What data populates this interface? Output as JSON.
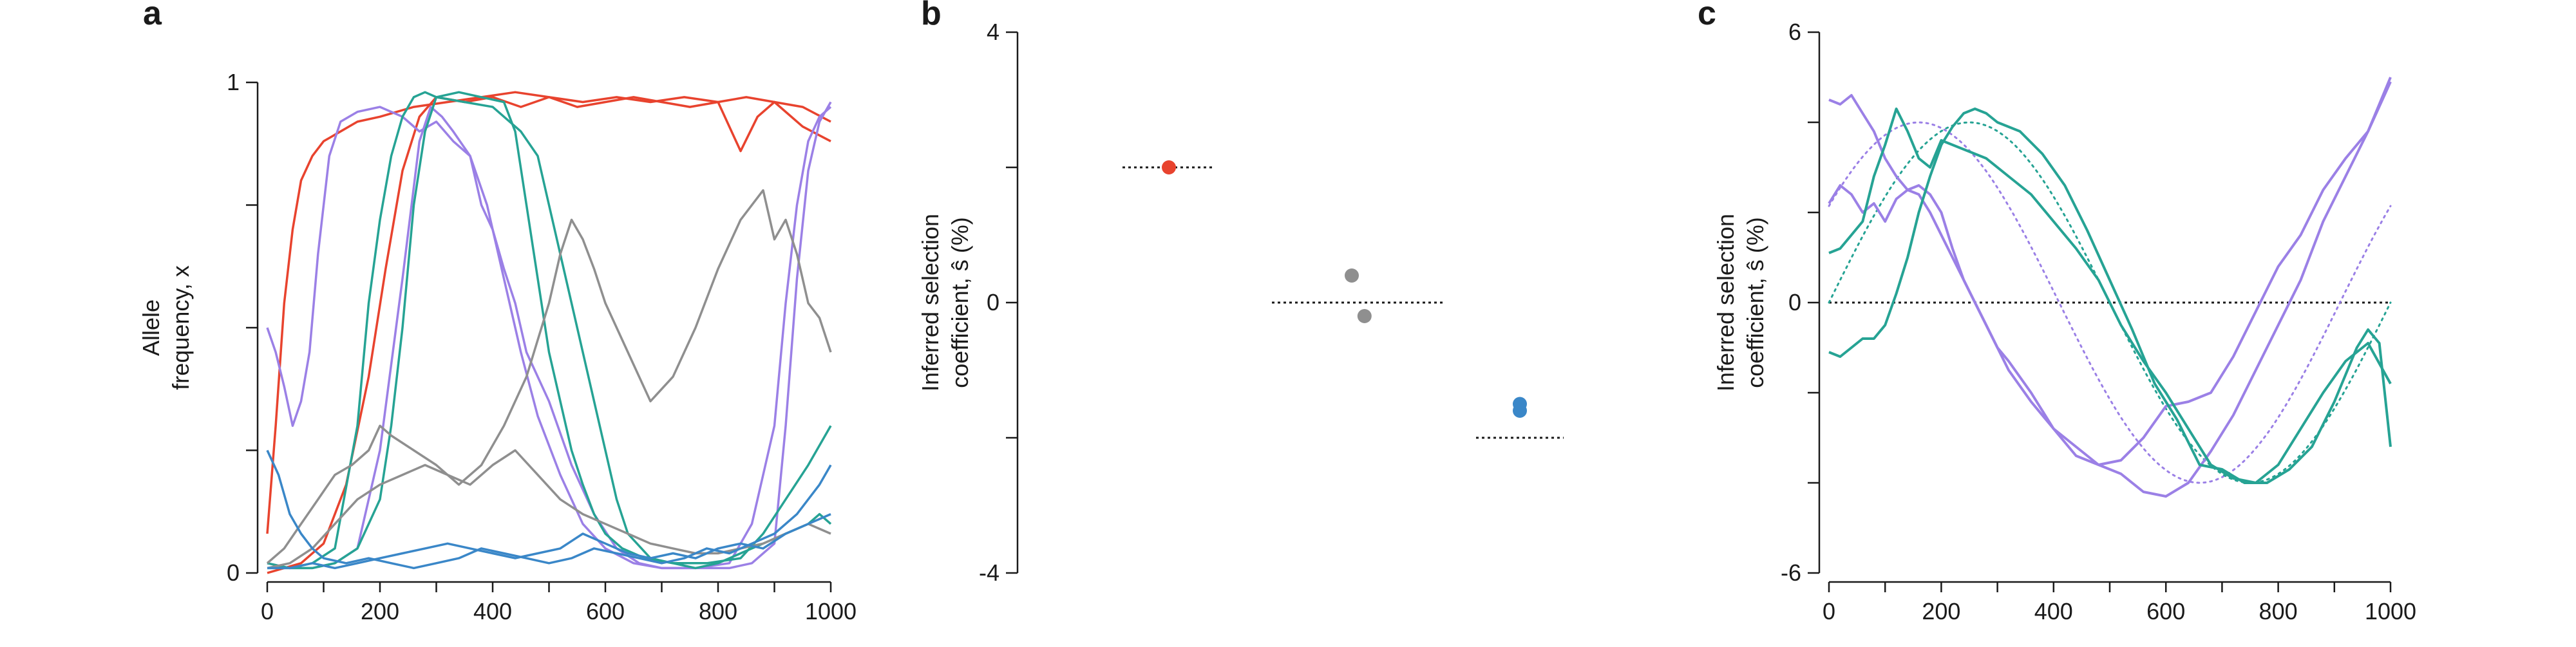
{
  "colors": {
    "red": "#e8432e",
    "gray": "#8f8f8f",
    "blue": "#3a87c8",
    "teal": "#26a394",
    "purple": "#9b80e6",
    "black": "#1a1a1a"
  },
  "chart_data": [
    {
      "type": "line",
      "panel": "a",
      "xlabel": "",
      "ylabel_lines": [
        "Allele",
        "frequency, x"
      ],
      "xlim": [
        0,
        1000
      ],
      "ylim": [
        0,
        1
      ],
      "xticks": [
        "0",
        "200",
        "400",
        "600",
        "800",
        "1000"
      ],
      "yticks": [
        "0",
        "1"
      ],
      "series": [
        {
          "color": "red",
          "x": [
            0,
            15,
            30,
            45,
            60,
            80,
            100,
            130,
            160,
            200,
            260,
            320,
            380,
            440,
            500,
            560,
            620,
            680,
            740,
            800,
            840,
            870,
            900,
            950,
            1000
          ],
          "y": [
            0.08,
            0.3,
            0.55,
            0.7,
            0.8,
            0.85,
            0.88,
            0.9,
            0.92,
            0.93,
            0.95,
            0.96,
            0.97,
            0.98,
            0.97,
            0.96,
            0.97,
            0.96,
            0.97,
            0.96,
            0.86,
            0.93,
            0.96,
            0.91,
            0.88
          ]
        },
        {
          "color": "red",
          "x": [
            0,
            60,
            100,
            140,
            180,
            210,
            240,
            270,
            300,
            350,
            400,
            450,
            500,
            550,
            600,
            650,
            700,
            750,
            800,
            850,
            900,
            950,
            1000
          ],
          "y": [
            0,
            0.02,
            0.06,
            0.18,
            0.4,
            0.62,
            0.82,
            0.93,
            0.97,
            0.96,
            0.97,
            0.95,
            0.97,
            0.95,
            0.96,
            0.97,
            0.96,
            0.95,
            0.96,
            0.97,
            0.96,
            0.95,
            0.92
          ]
        },
        {
          "color": "purple",
          "x": [
            0,
            15,
            30,
            45,
            60,
            75,
            90,
            110,
            130,
            160,
            200,
            240,
            270,
            300,
            330,
            360,
            380,
            400,
            420,
            440,
            460,
            500,
            540,
            580,
            620,
            660,
            700,
            740,
            780,
            820,
            860,
            900,
            920,
            940,
            960,
            980,
            1000
          ],
          "y": [
            0.5,
            0.45,
            0.38,
            0.3,
            0.35,
            0.45,
            0.65,
            0.85,
            0.92,
            0.94,
            0.95,
            0.93,
            0.9,
            0.92,
            0.88,
            0.85,
            0.75,
            0.7,
            0.62,
            0.55,
            0.45,
            0.35,
            0.22,
            0.12,
            0.05,
            0.02,
            0.01,
            0.01,
            0.01,
            0.01,
            0.02,
            0.06,
            0.3,
            0.6,
            0.82,
            0.92,
            0.96
          ]
        },
        {
          "color": "purple",
          "x": [
            0,
            40,
            80,
            120,
            160,
            200,
            240,
            270,
            290,
            310,
            330,
            360,
            390,
            420,
            450,
            480,
            520,
            560,
            600,
            650,
            700,
            760,
            820,
            860,
            900,
            920,
            940,
            960,
            980,
            1000
          ],
          "y": [
            0.02,
            0.01,
            0.01,
            0.02,
            0.05,
            0.25,
            0.6,
            0.88,
            0.95,
            0.93,
            0.9,
            0.85,
            0.75,
            0.6,
            0.45,
            0.32,
            0.2,
            0.1,
            0.05,
            0.02,
            0.01,
            0.01,
            0.02,
            0.1,
            0.3,
            0.55,
            0.75,
            0.88,
            0.93,
            0.95
          ]
        },
        {
          "color": "teal",
          "x": [
            0,
            40,
            80,
            120,
            160,
            180,
            200,
            220,
            240,
            260,
            280,
            300,
            350,
            400,
            450,
            480,
            500,
            520,
            540,
            560,
            580,
            600,
            620,
            640,
            680,
            720,
            760,
            800,
            840,
            880,
            920,
            960,
            980,
            1000
          ],
          "y": [
            0.01,
            0.01,
            0.02,
            0.05,
            0.3,
            0.55,
            0.72,
            0.85,
            0.93,
            0.97,
            0.98,
            0.97,
            0.96,
            0.95,
            0.9,
            0.85,
            0.75,
            0.65,
            0.55,
            0.45,
            0.35,
            0.25,
            0.15,
            0.08,
            0.03,
            0.02,
            0.01,
            0.02,
            0.04,
            0.06,
            0.08,
            0.1,
            0.12,
            0.1
          ]
        },
        {
          "color": "teal",
          "x": [
            0,
            40,
            80,
            120,
            160,
            200,
            220,
            240,
            260,
            280,
            300,
            340,
            380,
            420,
            440,
            460,
            480,
            500,
            520,
            540,
            560,
            580,
            600,
            630,
            670,
            720,
            780,
            840,
            880,
            920,
            960,
            1000
          ],
          "y": [
            0.02,
            0.01,
            0.01,
            0.02,
            0.05,
            0.15,
            0.3,
            0.5,
            0.75,
            0.9,
            0.97,
            0.98,
            0.97,
            0.96,
            0.9,
            0.75,
            0.6,
            0.45,
            0.35,
            0.25,
            0.18,
            0.12,
            0.08,
            0.05,
            0.03,
            0.02,
            0.02,
            0.03,
            0.08,
            0.15,
            0.22,
            0.3
          ]
        },
        {
          "color": "gray",
          "x": [
            0,
            30,
            60,
            90,
            120,
            150,
            180,
            200,
            220,
            260,
            300,
            340,
            380,
            420,
            460,
            500,
            520,
            540,
            560,
            580,
            600,
            640,
            680,
            720,
            760,
            800,
            840,
            880,
            900,
            920,
            940,
            960,
            980,
            1000
          ],
          "y": [
            0.02,
            0.05,
            0.1,
            0.15,
            0.2,
            0.22,
            0.25,
            0.3,
            0.28,
            0.25,
            0.22,
            0.18,
            0.22,
            0.3,
            0.4,
            0.55,
            0.65,
            0.72,
            0.68,
            0.62,
            0.55,
            0.45,
            0.35,
            0.4,
            0.5,
            0.62,
            0.72,
            0.78,
            0.68,
            0.72,
            0.65,
            0.55,
            0.52,
            0.45
          ]
        },
        {
          "color": "gray",
          "x": [
            0,
            40,
            80,
            120,
            160,
            200,
            240,
            280,
            320,
            360,
            400,
            440,
            480,
            520,
            560,
            600,
            640,
            680,
            720,
            760,
            800,
            840,
            880,
            920,
            960,
            1000
          ],
          "y": [
            0.01,
            0.02,
            0.05,
            0.1,
            0.15,
            0.18,
            0.2,
            0.22,
            0.2,
            0.18,
            0.22,
            0.25,
            0.2,
            0.15,
            0.12,
            0.1,
            0.08,
            0.06,
            0.05,
            0.04,
            0.04,
            0.05,
            0.06,
            0.08,
            0.1,
            0.08
          ]
        },
        {
          "color": "blue",
          "x": [
            0,
            20,
            40,
            60,
            80,
            100,
            140,
            180,
            220,
            260,
            300,
            340,
            380,
            420,
            460,
            500,
            540,
            580,
            620,
            660,
            700,
            740,
            780,
            820,
            860,
            900,
            940,
            980,
            1000
          ],
          "y": [
            0.25,
            0.2,
            0.12,
            0.08,
            0.05,
            0.03,
            0.02,
            0.03,
            0.02,
            0.01,
            0.02,
            0.03,
            0.05,
            0.04,
            0.03,
            0.02,
            0.03,
            0.05,
            0.04,
            0.03,
            0.02,
            0.03,
            0.05,
            0.04,
            0.06,
            0.08,
            0.12,
            0.18,
            0.22
          ]
        },
        {
          "color": "blue",
          "x": [
            0,
            40,
            80,
            120,
            160,
            200,
            240,
            280,
            320,
            360,
            400,
            440,
            480,
            520,
            560,
            600,
            640,
            680,
            720,
            760,
            800,
            840,
            880,
            920,
            960,
            1000
          ],
          "y": [
            0.01,
            0.01,
            0.02,
            0.01,
            0.02,
            0.03,
            0.04,
            0.05,
            0.06,
            0.05,
            0.04,
            0.03,
            0.04,
            0.05,
            0.08,
            0.06,
            0.04,
            0.03,
            0.04,
            0.03,
            0.05,
            0.06,
            0.05,
            0.08,
            0.1,
            0.12
          ]
        }
      ]
    },
    {
      "type": "scatter",
      "panel": "b",
      "ylabel_lines": [
        "Inferred selection",
        "coefficient, ŝ (%)"
      ],
      "ylim": [
        -4,
        4
      ],
      "yticks": [
        "-4",
        "0",
        "4"
      ],
      "groups": [
        {
          "color": "red",
          "true_s": 2,
          "points": [
            [
              1,
              2.0
            ]
          ]
        },
        {
          "color": "gray",
          "true_s": 0,
          "points": [
            [
              2.15,
              0.4
            ],
            [
              2.24,
              -0.2
            ]
          ]
        },
        {
          "color": "blue",
          "true_s": -2,
          "points": [
            [
              3.0,
              -1.5
            ],
            [
              3.0,
              -1.6
            ]
          ]
        }
      ]
    },
    {
      "type": "line",
      "panel": "c",
      "xlabel": "",
      "ylabel_lines": [
        "Inferred selection",
        "coefficient, ŝ (%)"
      ],
      "xlim": [
        0,
        1000
      ],
      "ylim": [
        -6,
        6
      ],
      "xticks": [
        "0",
        "200",
        "400",
        "600",
        "800",
        "1000"
      ],
      "yticks": [
        "-6",
        "0",
        "6"
      ],
      "reference_curves": [
        {
          "color": "purple",
          "amplitude": 4,
          "phase": 90,
          "period": 1000
        },
        {
          "color": "teal",
          "amplitude": 4,
          "phase": 0,
          "period": 1000
        }
      ],
      "series": [
        {
          "color": "purple",
          "x": [
            0,
            20,
            40,
            60,
            80,
            100,
            120,
            140,
            160,
            180,
            200,
            240,
            280,
            320,
            360,
            400,
            440,
            480,
            520,
            560,
            600,
            640,
            680,
            720,
            760,
            800,
            840,
            880,
            920,
            960,
            1000
          ],
          "y": [
            4.5,
            4.4,
            4.6,
            4.2,
            3.8,
            3.2,
            2.8,
            2.5,
            2.4,
            2.0,
            1.5,
            0.5,
            -0.5,
            -1.5,
            -2.2,
            -2.8,
            -3.4,
            -3.6,
            -3.8,
            -4.2,
            -4.3,
            -4.0,
            -3.3,
            -2.5,
            -1.5,
            -0.5,
            0.5,
            1.8,
            2.8,
            3.8,
            5.0
          ]
        },
        {
          "color": "purple",
          "x": [
            0,
            20,
            40,
            60,
            80,
            100,
            120,
            140,
            160,
            180,
            200,
            220,
            240,
            260,
            280,
            300,
            320,
            360,
            400,
            440,
            480,
            520,
            560,
            600,
            640,
            680,
            720,
            760,
            800,
            840,
            880,
            920,
            960,
            1000
          ],
          "y": [
            2.2,
            2.6,
            2.4,
            2.0,
            2.2,
            1.8,
            2.3,
            2.5,
            2.6,
            2.4,
            2.0,
            1.2,
            0.5,
            0,
            -0.5,
            -1.0,
            -1.3,
            -2.0,
            -2.8,
            -3.2,
            -3.6,
            -3.5,
            -3.0,
            -2.3,
            -2.2,
            -2.0,
            -1.2,
            -0.2,
            0.8,
            1.5,
            2.5,
            3.2,
            3.8,
            4.9
          ]
        },
        {
          "color": "teal",
          "x": [
            0,
            20,
            40,
            60,
            80,
            100,
            120,
            140,
            160,
            180,
            200,
            220,
            240,
            260,
            280,
            300,
            340,
            380,
            420,
            460,
            500,
            540,
            580,
            620,
            660,
            700,
            740,
            780,
            820,
            860,
            900,
            940,
            960,
            980,
            1000
          ],
          "y": [
            -1.1,
            -1.2,
            -1.0,
            -0.8,
            -0.8,
            -0.5,
            0.2,
            1.0,
            2.0,
            2.8,
            3.5,
            3.9,
            4.2,
            4.3,
            4.2,
            4.0,
            3.8,
            3.3,
            2.6,
            1.6,
            0.5,
            -0.6,
            -1.8,
            -2.6,
            -3.6,
            -3.7,
            -4.0,
            -4.0,
            -3.7,
            -3.2,
            -2.2,
            -1.0,
            -0.6,
            -0.9,
            -3.2
          ]
        },
        {
          "color": "teal",
          "x": [
            0,
            20,
            40,
            60,
            80,
            100,
            120,
            140,
            160,
            180,
            200,
            240,
            280,
            320,
            360,
            400,
            440,
            480,
            520,
            560,
            600,
            640,
            680,
            720,
            760,
            800,
            840,
            880,
            920,
            960,
            1000
          ],
          "y": [
            1.1,
            1.2,
            1.5,
            1.8,
            2.8,
            3.5,
            4.3,
            3.8,
            3.2,
            3.0,
            3.6,
            3.4,
            3.2,
            2.8,
            2.4,
            1.8,
            1.2,
            0.5,
            -0.5,
            -1.3,
            -2.0,
            -2.8,
            -3.6,
            -3.9,
            -4.0,
            -3.6,
            -2.8,
            -2.0,
            -1.3,
            -0.9,
            -1.8
          ]
        }
      ]
    }
  ]
}
